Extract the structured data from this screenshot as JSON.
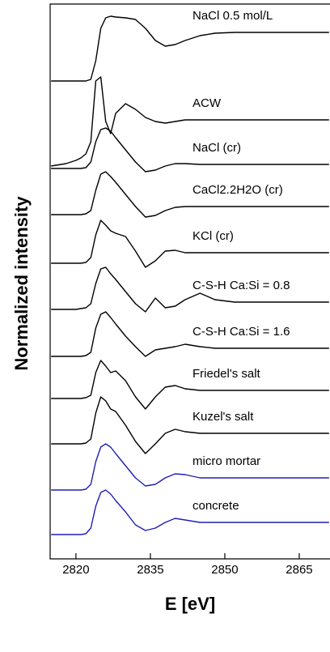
{
  "chart_data": {
    "type": "line",
    "xlabel": "E [eV]",
    "ylabel": "Normalized intensity",
    "xlim": [
      2814.8,
      2871.2
    ],
    "xticks": [
      2820,
      2835,
      2850,
      2865
    ],
    "ylim": [
      0,
      685
    ],
    "x": [
      2815,
      2818,
      2820,
      2821,
      2822,
      2823,
      2824,
      2825,
      2826,
      2827,
      2828,
      2830,
      2832,
      2834,
      2836,
      2838,
      2840,
      2842,
      2845,
      2848,
      2852,
      2856,
      2860,
      2865,
      2871
    ],
    "series": [
      {
        "name": "NaCl 0.5 mol/L",
        "color": "#000000",
        "values": [
          590,
          590,
          590,
          590,
          590,
          592,
          615,
          655,
          668,
          670,
          669,
          668,
          666,
          655,
          640,
          633,
          635,
          640,
          646,
          649,
          650,
          650,
          650,
          650,
          650
        ]
      },
      {
        "name": "ACW",
        "color": "#000000",
        "values": [
          485,
          488,
          492,
          495,
          500,
          515,
          590,
          595,
          540,
          525,
          550,
          562,
          555,
          545,
          540,
          538,
          540,
          542,
          542,
          542,
          542,
          542,
          542,
          542,
          542
        ]
      },
      {
        "name": "NaCl (cr)",
        "color": "#000000",
        "values": [
          482,
          482,
          482,
          482,
          483,
          490,
          515,
          530,
          532,
          528,
          520,
          505,
          490,
          478,
          480,
          485,
          488,
          488,
          487,
          487,
          487,
          487,
          487,
          487,
          487
        ]
      },
      {
        "name": "CaCl2.2H2O (cr)",
        "color": "#000000",
        "values": [
          425,
          425,
          425,
          425,
          426,
          430,
          455,
          475,
          478,
          472,
          465,
          450,
          435,
          422,
          424,
          430,
          434,
          435,
          435,
          435,
          435,
          435,
          435,
          435,
          435
        ]
      },
      {
        "name": "KCl (cr)",
        "color": "#000000",
        "values": [
          365,
          365,
          365,
          365,
          366,
          372,
          400,
          418,
          412,
          405,
          402,
          398,
          380,
          360,
          368,
          380,
          381,
          378,
          378,
          378,
          378,
          378,
          378,
          378,
          378
        ]
      },
      {
        "name": "C-S-H Ca:Si = 0.8",
        "color": "#000000",
        "values": [
          308,
          308,
          308,
          309,
          310,
          315,
          340,
          358,
          360,
          352,
          345,
          330,
          315,
          305,
          322,
          310,
          312,
          320,
          328,
          320,
          317,
          317,
          317,
          317,
          317
        ]
      },
      {
        "name": "C-S-H Ca:Si = 1.6",
        "color": "#000000",
        "values": [
          250,
          250,
          250,
          250,
          251,
          255,
          285,
          302,
          305,
          298,
          290,
          275,
          262,
          250,
          258,
          260,
          262,
          265,
          262,
          260,
          260,
          260,
          260,
          260,
          260
        ]
      },
      {
        "name": "Friedel's salt",
        "color": "#000000",
        "values": [
          198,
          198,
          198,
          198,
          199,
          202,
          230,
          245,
          238,
          230,
          232,
          220,
          200,
          185,
          200,
          212,
          214,
          210,
          208,
          208,
          208,
          208,
          208,
          208,
          208
        ]
      },
      {
        "name": "Kuzel's salt",
        "color": "#000000",
        "values": [
          142,
          142,
          142,
          142,
          143,
          148,
          180,
          200,
          195,
          185,
          182,
          165,
          145,
          130,
          142,
          155,
          160,
          157,
          155,
          155,
          155,
          155,
          155,
          155,
          155
        ]
      },
      {
        "name": "micro mortar",
        "color": "#1f1fb4",
        "values": [
          85,
          85,
          85,
          85,
          86,
          92,
          120,
          138,
          142,
          138,
          130,
          115,
          100,
          90,
          92,
          100,
          105,
          104,
          100,
          100,
          100,
          100,
          100,
          100,
          100
        ]
      },
      {
        "name": "concrete",
        "color": "#1f1fb4",
        "values": [
          30,
          30,
          30,
          30,
          31,
          38,
          65,
          82,
          85,
          80,
          72,
          58,
          42,
          35,
          38,
          45,
          50,
          48,
          45,
          45,
          45,
          45,
          45,
          45,
          45
        ]
      }
    ]
  }
}
